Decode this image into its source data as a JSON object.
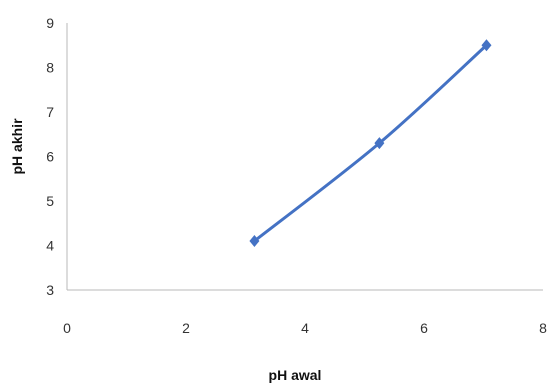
{
  "chart_data": {
    "type": "line",
    "title": "",
    "xlabel": "pH awal",
    "ylabel": "pH akhir",
    "xlim": [
      0,
      8
    ],
    "ylim": [
      3,
      9
    ],
    "xticks": [
      "0",
      "2",
      "4",
      "6",
      "8"
    ],
    "yticks": [
      "3",
      "4",
      "5",
      "6",
      "7",
      "8",
      "9"
    ],
    "grid": false,
    "legend": "none",
    "series": [
      {
        "color": "#4472c4",
        "marker": "diamond",
        "x": [
          3.15,
          5.25,
          7.05
        ],
        "y": [
          4.1,
          6.3,
          8.5
        ]
      }
    ]
  }
}
